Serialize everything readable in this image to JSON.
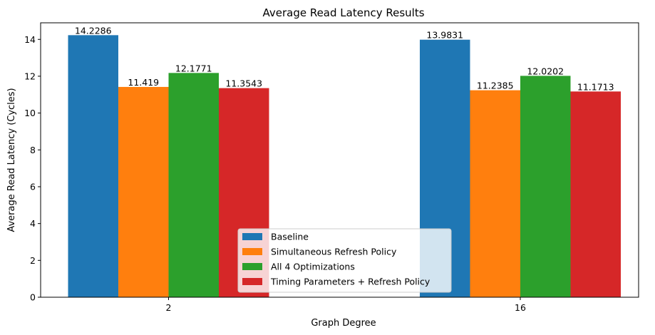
{
  "chart_data": {
    "type": "bar",
    "title": "Average Read Latency Results",
    "xlabel": "Graph Degree",
    "ylabel": "Average Read Latency (Cycles)",
    "categories": [
      "2",
      "16"
    ],
    "ylim": [
      0,
      14.9
    ],
    "yticks": [
      0,
      2,
      4,
      6,
      8,
      10,
      12,
      14
    ],
    "ytick_labels": [
      "0",
      "2",
      "4",
      "6",
      "8",
      "10",
      "12",
      "14"
    ],
    "grid": false,
    "legend_position": "bottom-center",
    "series": [
      {
        "name": "Baseline",
        "color": "#1f77b4",
        "values": [
          14.2286,
          13.9831
        ],
        "labels": [
          "14.2286",
          "13.9831"
        ]
      },
      {
        "name": "Simultaneous Refresh Policy",
        "color": "#ff7f0e",
        "values": [
          11.419,
          11.2385
        ],
        "labels": [
          "11.419",
          "11.2385"
        ]
      },
      {
        "name": "All 4 Optimizations",
        "color": "#2ca02c",
        "values": [
          12.1771,
          12.0202
        ],
        "labels": [
          "12.1771",
          "12.0202"
        ]
      },
      {
        "name": "Timing Parameters + Refresh Policy",
        "color": "#d62728",
        "values": [
          11.3543,
          11.1713
        ],
        "labels": [
          "11.3543",
          "11.1713"
        ]
      }
    ]
  }
}
